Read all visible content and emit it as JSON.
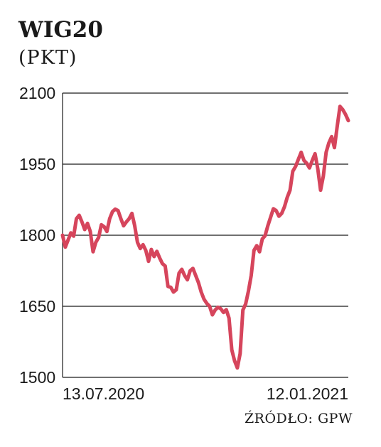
{
  "chart_data": {
    "type": "line",
    "title": "WIG20",
    "unit": "(PKT)",
    "source": "ŹRÓDŁO: GPW",
    "yticks": [
      2100,
      1950,
      1800,
      1650,
      1500
    ],
    "ylim": [
      1500,
      2100
    ],
    "x_labels": [
      "13.07.2020",
      "12.01.2021"
    ],
    "grid": true,
    "color": "#d6455c",
    "series": [
      {
        "values": [
          1800,
          1775,
          1790,
          1805,
          1798,
          1835,
          1842,
          1828,
          1812,
          1825,
          1808,
          1765,
          1785,
          1795,
          1822,
          1818,
          1808,
          1835,
          1850,
          1855,
          1852,
          1835,
          1820,
          1828,
          1835,
          1846,
          1820,
          1785,
          1772,
          1780,
          1768,
          1745,
          1770,
          1755,
          1766,
          1752,
          1740,
          1735,
          1692,
          1690,
          1680,
          1685,
          1720,
          1728,
          1715,
          1706,
          1725,
          1730,
          1715,
          1700,
          1680,
          1665,
          1656,
          1650,
          1632,
          1642,
          1648,
          1645,
          1637,
          1643,
          1625,
          1558,
          1535,
          1520,
          1550,
          1642,
          1655,
          1682,
          1715,
          1768,
          1778,
          1765,
          1792,
          1799,
          1820,
          1838,
          1856,
          1852,
          1840,
          1846,
          1860,
          1880,
          1895,
          1935,
          1945,
          1960,
          1975,
          1958,
          1952,
          1942,
          1958,
          1972,
          1940,
          1895,
          1925,
          1975,
          1995,
          2008,
          1985,
          2030,
          2072,
          2065,
          2055,
          2042
        ]
      }
    ]
  }
}
